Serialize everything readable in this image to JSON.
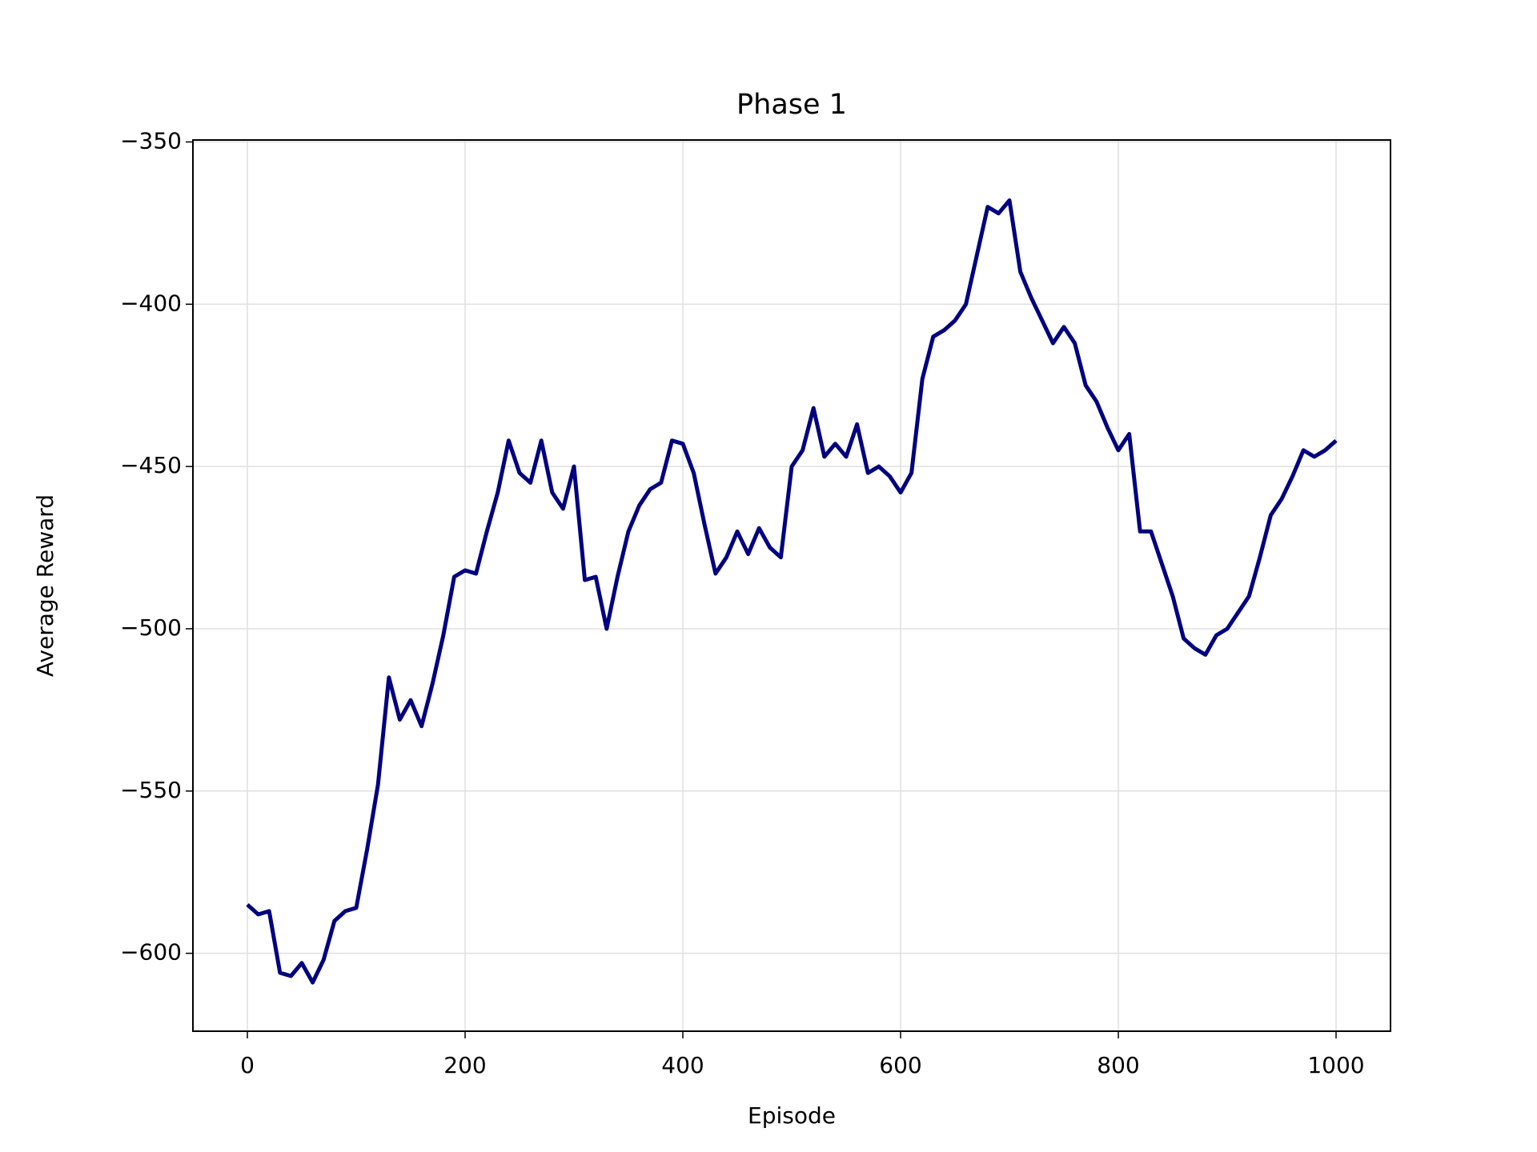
{
  "chart_data": {
    "type": "line",
    "title": "Phase 1",
    "x_label": "Episode",
    "y_label": "Average Reward",
    "x": [
      0,
      10,
      20,
      30,
      40,
      50,
      60,
      70,
      80,
      90,
      100,
      110,
      120,
      130,
      140,
      150,
      160,
      170,
      180,
      190,
      200,
      210,
      220,
      230,
      240,
      250,
      260,
      270,
      280,
      290,
      300,
      310,
      320,
      330,
      340,
      350,
      360,
      370,
      380,
      390,
      400,
      410,
      420,
      430,
      440,
      450,
      460,
      470,
      480,
      490,
      500,
      510,
      520,
      530,
      540,
      550,
      560,
      570,
      580,
      590,
      600,
      610,
      620,
      630,
      640,
      650,
      660,
      670,
      680,
      690,
      700,
      710,
      720,
      730,
      740,
      750,
      760,
      770,
      780,
      790,
      800,
      810,
      820,
      830,
      840,
      850,
      860,
      870,
      880,
      890,
      900,
      910,
      920,
      930,
      940,
      950,
      960,
      970,
      980,
      990,
      1000
    ],
    "series": [
      {
        "name": "Average Reward",
        "color": "#000080",
        "values": [
          -585,
          -588,
          -587,
          -606,
          -607,
          -603,
          -609,
          -602,
          -590,
          -587,
          -586,
          -568,
          -548,
          -515,
          -528,
          -522,
          -530,
          -517,
          -502,
          -484,
          -482,
          -483,
          -470,
          -458,
          -442,
          -452,
          -455,
          -442,
          -458,
          -463,
          -450,
          -485,
          -484,
          -500,
          -484,
          -470,
          -462,
          -457,
          -455,
          -442,
          -443,
          -452,
          -468,
          -483,
          -478,
          -470,
          -477,
          -469,
          -475,
          -478,
          -450,
          -445,
          -432,
          -447,
          -443,
          -447,
          -437,
          -452,
          -450,
          -453,
          -458,
          -452,
          -423,
          -410,
          -408,
          -405,
          -400,
          -385,
          -370,
          -372,
          -368,
          -390,
          -398,
          -405,
          -412,
          -407,
          -412,
          -425,
          -430,
          -438,
          -445,
          -440,
          -470,
          -470,
          -480,
          -490,
          -503,
          -506,
          -508,
          -502,
          -500,
          -495,
          -490,
          -478,
          -465,
          -460,
          -453,
          -445,
          -447,
          -445,
          -442
        ]
      }
    ],
    "xlim": [
      -50,
      1050
    ],
    "ylim": [
      -624,
      -349.4
    ],
    "xticks": [
      0,
      200,
      400,
      600,
      800,
      1000
    ],
    "yticks": [
      {
        "value": -600,
        "label": "−600"
      },
      {
        "value": -550,
        "label": "−550"
      },
      {
        "value": -500,
        "label": "−500"
      },
      {
        "value": -450,
        "label": "−450"
      },
      {
        "value": -400,
        "label": "−400"
      },
      {
        "value": -350,
        "label": "−350"
      }
    ],
    "grid": true
  }
}
